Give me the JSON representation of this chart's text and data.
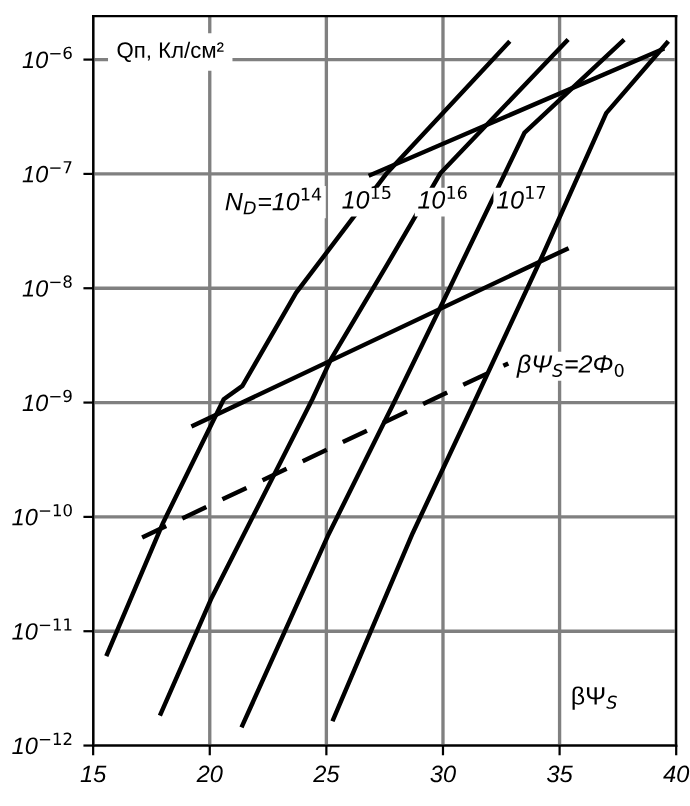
{
  "chart_data": {
    "type": "line",
    "ylabel": "Qп, Кл/см²",
    "xlabel": "βΨ$_{S}$",
    "log": "y",
    "xlim": [
      15,
      40
    ],
    "ylim": [
      1e-12,
      2.4e-06
    ],
    "xticks": [
      15,
      20,
      25,
      30,
      35,
      40
    ],
    "yticks": [
      {
        "value": 1e-12,
        "label": "10$^{−12}$"
      },
      {
        "value": 1e-11,
        "label": "10$^{−11}$"
      },
      {
        "value": 1e-10,
        "label": "10$^{−10}$"
      },
      {
        "value": 1e-09,
        "label": "10$^{−9}$"
      },
      {
        "value": 1e-08,
        "label": "10$^{−8}$"
      },
      {
        "value": 1e-07,
        "label": "10$^{−7}$"
      },
      {
        "value": 1e-06,
        "label": "10$^{−6}$"
      }
    ],
    "grid": true,
    "marker": "none",
    "series": [
      {
        "color": "#000000",
        "line_style": "solid",
        "x": [
          15.6,
          18.0,
          20.6,
          21.4,
          23.7,
          27.6,
          32.8
        ],
        "values": [
          6.3e-12,
          8.9e-11,
          1.07e-09,
          1.4e-09,
          9.1e-09,
          1.02e-07,
          1.4e-06
        ]
      },
      {
        "color": "#000000",
        "line_style": "solid",
        "x": [
          17.9,
          20.05,
          24.4,
          25.2,
          27.6,
          29.9,
          35.3
        ],
        "values": [
          1.9e-12,
          1.9e-11,
          1.07e-09,
          2.4e-09,
          1.6e-08,
          1.02e-07,
          1.45e-06
        ]
      },
      {
        "color": "#000000",
        "line_style": "solid",
        "x": [
          21.4,
          25.06,
          27.97,
          29.9,
          33.5,
          37.7
        ],
        "values": [
          1.5e-12,
          6.8e-11,
          1.07e-09,
          6.9e-09,
          2.3e-07,
          1.45e-06
        ]
      },
      {
        "color": "#000000",
        "line_style": "solid",
        "x": [
          25.3,
          28.7,
          31.4,
          34.2,
          37.0,
          39.6
        ],
        "values": [
          1.7e-12,
          7.2e-11,
          1.07e-09,
          1.8e-08,
          3.4e-07,
          1.4e-06
        ]
      },
      {
        "color": "#000000",
        "line_style": "solid",
        "x": [
          26.9,
          39.4
        ],
        "values": [
          9.8e-08,
          1.23e-06
        ]
      },
      {
        "color": "#000000",
        "line_style": "solid",
        "x": [
          19.3,
          35.3
        ],
        "values": [
          6.3e-10,
          2.2e-08
        ]
      },
      {
        "color": "#000000",
        "line_style": "dashed",
        "x": [
          17.1,
          32.8
        ],
        "values": [
          6.6e-11,
          2.2e-09
        ]
      }
    ],
    "annotations": [
      "N$_{D}$=10$^{14}$",
      "10$^{15}$",
      "10$^{16}$",
      "10$^{17}$",
      "βΨ$_{S}$=2Φ$_{0}$"
    ]
  }
}
